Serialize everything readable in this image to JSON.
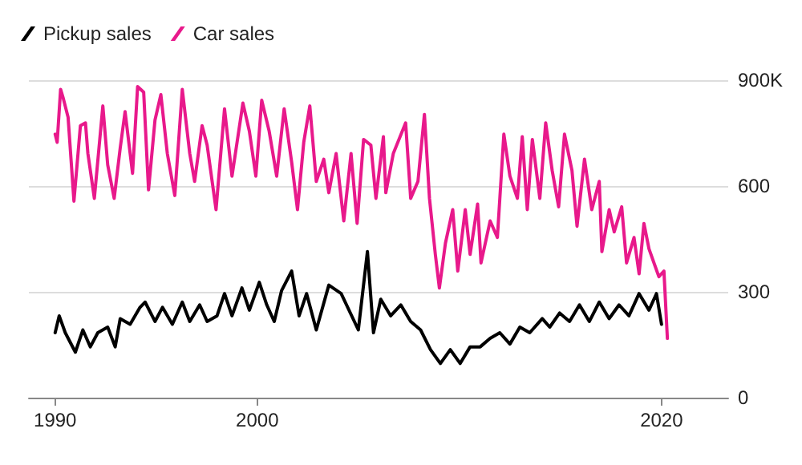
{
  "chart_data": {
    "type": "line",
    "series": [
      {
        "name": "Pickup sales",
        "color": "#000000",
        "x": [
          1990.0,
          1990.2,
          1990.5,
          1991.0,
          1991.37,
          1991.74,
          1992.11,
          1992.6,
          1992.97,
          1993.22,
          1993.71,
          1994.2,
          1994.45,
          1994.94,
          1995.31,
          1995.8,
          1996.29,
          1996.66,
          1997.15,
          1997.52,
          1998.01,
          1998.38,
          1998.75,
          1999.24,
          1999.61,
          2000.1,
          2000.47,
          2000.84,
          2001.2,
          2001.7,
          2002.07,
          2002.44,
          2002.92,
          2003.54,
          2004.15,
          2005.0,
          2005.45,
          2005.75,
          2006.11,
          2006.6,
          2007.1,
          2007.59,
          2008.08,
          2008.57,
          2009.06,
          2009.55,
          2010.04,
          2010.53,
          2011.03,
          2011.52,
          2012.0,
          2012.5,
          2012.99,
          2013.48,
          2014.1,
          2014.47,
          2014.96,
          2015.45,
          2015.94,
          2016.43,
          2016.92,
          2017.41,
          2017.9,
          2018.39,
          2018.89,
          2019.38,
          2019.75,
          2020.0
        ],
        "values": [
          184,
          232,
          184,
          129,
          192,
          144,
          184,
          200,
          144,
          224,
          208,
          256,
          271,
          216,
          256,
          208,
          271,
          216,
          263,
          216,
          232,
          295,
          232,
          311,
          248,
          327,
          263,
          216,
          303,
          359,
          232,
          295,
          192,
          319,
          295,
          192,
          414,
          184,
          279,
          232,
          263,
          216,
          192,
          136,
          97,
          136,
          97,
          144,
          144,
          168,
          184,
          152,
          200,
          184,
          224,
          200,
          240,
          216,
          263,
          216,
          271,
          224,
          263,
          232,
          295,
          248,
          295,
          208
        ]
      },
      {
        "name": "Car sales",
        "color": "#e8198b",
        "x": [
          1990.0,
          1990.1,
          1990.27,
          1990.39,
          1990.64,
          1990.93,
          1991.25,
          1991.5,
          1991.62,
          1991.94,
          1992.36,
          1992.6,
          1992.92,
          1993.22,
          1993.46,
          1993.83,
          1994.08,
          1994.38,
          1994.62,
          1994.94,
          1995.23,
          1995.55,
          1995.92,
          1996.29,
          1996.66,
          1996.9,
          1997.27,
          1997.52,
          1997.96,
          1998.38,
          1998.75,
          1999.29,
          1999.61,
          1999.93,
          2000.22,
          2000.59,
          2000.96,
          2001.33,
          2001.7,
          2001.99,
          2002.3,
          2002.6,
          2002.92,
          2003.29,
          2003.54,
          2003.9,
          2004.28,
          2004.64,
          2004.94,
          2005.26,
          2005.62,
          2005.87,
          2006.24,
          2006.36,
          2006.73,
          2007.34,
          2007.59,
          2007.95,
          2008.27,
          2008.52,
          2008.81,
          2009.01,
          2009.31,
          2009.67,
          2009.92,
          2010.29,
          2010.53,
          2010.9,
          2011.07,
          2011.52,
          2011.88,
          2012.2,
          2012.5,
          2012.87,
          2013.11,
          2013.36,
          2013.61,
          2013.98,
          2014.27,
          2014.59,
          2014.91,
          2015.2,
          2015.57,
          2015.82,
          2016.19,
          2016.55,
          2016.92,
          2017.05,
          2017.41,
          2017.66,
          2018.03,
          2018.27,
          2018.64,
          2018.89,
          2019.13,
          2019.38,
          2019.67,
          2019.87,
          2020.12,
          2020.29
        ],
        "values": [
          747,
          724,
          874,
          851,
          795,
          557,
          771,
          779,
          692,
          565,
          827,
          660,
          565,
          708,
          811,
          636,
          882,
          866,
          589,
          787,
          859,
          692,
          573,
          874,
          692,
          613,
          771,
          716,
          533,
          819,
          628,
          835,
          755,
          628,
          843,
          755,
          628,
          819,
          668,
          533,
          724,
          827,
          613,
          676,
          581,
          692,
          501,
          692,
          494,
          732,
          716,
          565,
          740,
          581,
          692,
          779,
          565,
          613,
          803,
          565,
          406,
          311,
          438,
          533,
          359,
          533,
          406,
          549,
          382,
          501,
          454,
          747,
          628,
          565,
          740,
          533,
          732,
          565,
          779,
          644,
          541,
          747,
          644,
          486,
          676,
          533,
          613,
          414,
          533,
          470,
          541,
          382,
          454,
          351,
          494,
          422,
          375,
          343,
          359,
          168
        ]
      }
    ],
    "xlim": [
      1988.7,
      2023.3
    ],
    "xticks": [
      1990,
      2000,
      2020
    ],
    "ylim": [
      0,
      900
    ],
    "yticks": [
      0,
      300,
      600,
      {
        "value": 900,
        "label": "900K"
      }
    ],
    "grid": "y",
    "legend": "top left",
    "marker": "none",
    "line_style": "solid"
  }
}
